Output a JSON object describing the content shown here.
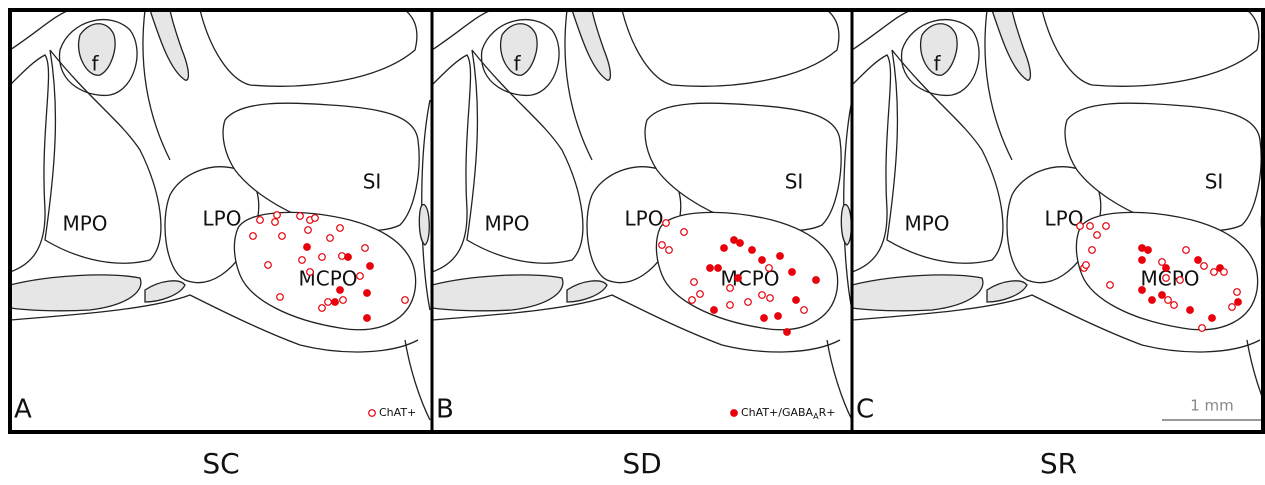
{
  "panels": [
    {
      "letter": "A",
      "group": "SC",
      "regions": [
        "f",
        "MPO",
        "LPO",
        "SI",
        "MCPO"
      ],
      "legend": {
        "text": "ChAT+"
      }
    },
    {
      "letter": "B",
      "group": "SD",
      "regions": [
        "f",
        "MPO",
        "LPO",
        "SI",
        "MCPO"
      ],
      "legend": {
        "text": "ChAT+/GABA",
        "sub": "A",
        "tail": "R+"
      }
    },
    {
      "letter": "C",
      "group": "SR",
      "regions": [
        "f",
        "MPO",
        "LPO",
        "SI",
        "MCPO"
      ],
      "scale_bar": "1 mm"
    }
  ]
}
